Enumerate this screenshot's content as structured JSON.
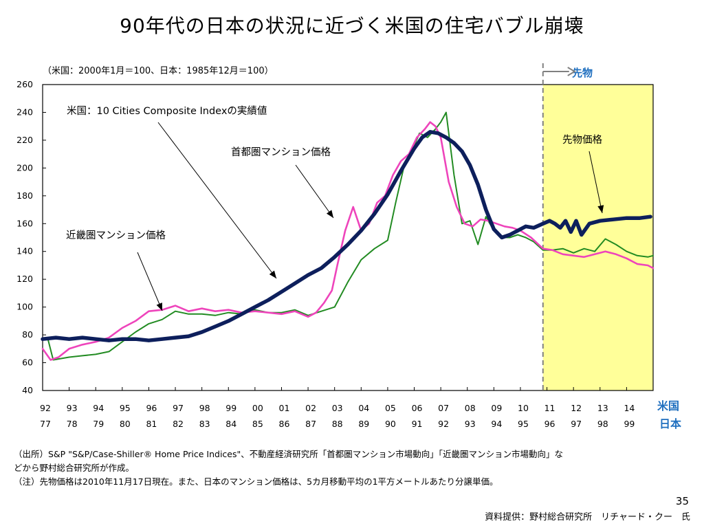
{
  "title": "90年代の日本の状況に近づく米国の住宅バブル崩壊",
  "index_note": "（米国：2000年1月＝100、日本：1985年12月＝100）",
  "futures_label": "先物",
  "footnotes": {
    "line1": "（出所）S&P \"S&P/Case-Shiller® Home Price Indices\"、不動産経済研究所「首都圏マンション市場動向」「近畿圏マンション市場動向」な",
    "line2": "どから野村総合研究所が作成。",
    "line3": "（注）先物価格は2010年11月17日現在。また、日本のマンション価格は、5カ月移動平均の1平方メートルあたり分譲単価。"
  },
  "page_number": "35",
  "credit": "資料提供：野村総合研究所　リチャード・クー　氏",
  "chart_data": {
    "type": "line",
    "ylim": [
      40,
      260
    ],
    "yticks": [
      40,
      60,
      80,
      100,
      120,
      140,
      160,
      180,
      200,
      220,
      240,
      260
    ],
    "x_range": [
      1992,
      2015
    ],
    "xticks_us": [
      "92",
      "93",
      "94",
      "95",
      "96",
      "97",
      "98",
      "99",
      "00",
      "01",
      "02",
      "03",
      "04",
      "05",
      "06",
      "07",
      "08",
      "09",
      "10",
      "11",
      "12",
      "13",
      "14"
    ],
    "xticks_jp": [
      "77",
      "78",
      "79",
      "80",
      "81",
      "82",
      "83",
      "84",
      "85",
      "86",
      "87",
      "88",
      "89",
      "90",
      "91",
      "92",
      "93",
      "94",
      "95",
      "96",
      "97",
      "98",
      "99"
    ],
    "axis_label_us": "米国",
    "axis_label_jp": "日本",
    "futures_start": 2010.85,
    "grid": false,
    "colors": {
      "us": "#0d1f5c",
      "tokyo": "#ee44bb",
      "kinki": "#228b22",
      "futures_bg": "#ffff99",
      "accent": "#1f6fbf"
    },
    "annotations": {
      "us": "米国：10 Cities Composite Indexの実績値",
      "tokyo": "首都圏マンション価格",
      "kinki": "近畿圏マンション価格",
      "futures": "先物価格"
    },
    "series": [
      {
        "key": "us",
        "name": "米国：10 Cities Composite Indexの実績値",
        "x": [
          1992.0,
          1992.5,
          1993.0,
          1993.5,
          1994.0,
          1994.5,
          1995.0,
          1995.5,
          1996.0,
          1996.5,
          1997.0,
          1997.5,
          1998.0,
          1998.5,
          1999.0,
          1999.5,
          2000.0,
          2000.5,
          2001.0,
          2001.5,
          2002.0,
          2002.5,
          2003.0,
          2003.5,
          2004.0,
          2004.5,
          2005.0,
          2005.5,
          2006.0,
          2006.3,
          2006.6,
          2006.9,
          2007.2,
          2007.5,
          2007.8,
          2008.1,
          2008.4,
          2008.7,
          2009.0,
          2009.3,
          2009.6,
          2009.9,
          2010.2,
          2010.5,
          2010.85
        ],
        "y": [
          77,
          78,
          77,
          78,
          77,
          76,
          77,
          77,
          76,
          77,
          78,
          79,
          82,
          86,
          90,
          95,
          100,
          105,
          111,
          117,
          123,
          128,
          136,
          145,
          155,
          167,
          181,
          198,
          214,
          222,
          226,
          225,
          222,
          218,
          212,
          202,
          188,
          170,
          156,
          150,
          152,
          155,
          158,
          157,
          160
        ]
      },
      {
        "key": "us_futures",
        "name": "先物価格",
        "x": [
          2010.85,
          2011.1,
          2011.3,
          2011.5,
          2011.7,
          2011.9,
          2012.1,
          2012.3,
          2012.6,
          2013.0,
          2013.5,
          2014.0,
          2014.5,
          2014.9
        ],
        "y": [
          160,
          162,
          160,
          157,
          162,
          154,
          162,
          152,
          160,
          162,
          163,
          164,
          164,
          165
        ]
      },
      {
        "key": "tokyo",
        "name": "首都圏マンション価格",
        "x": [
          1992.0,
          1992.3,
          1992.6,
          1993.0,
          1993.5,
          1994.0,
          1994.5,
          1995.0,
          1995.5,
          1996.0,
          1996.5,
          1997.0,
          1997.5,
          1998.0,
          1998.5,
          1999.0,
          1999.5,
          2000.0,
          2000.5,
          2001.0,
          2001.5,
          2002.0,
          2002.3,
          2002.6,
          2002.9,
          2003.1,
          2003.4,
          2003.7,
          2004.0,
          2004.3,
          2004.6,
          2004.9,
          2005.2,
          2005.5,
          2005.8,
          2006.1,
          2006.4,
          2006.6,
          2006.8,
          2007.0,
          2007.3,
          2007.6,
          2007.9,
          2008.2,
          2008.5,
          2008.8,
          2009.1,
          2009.4,
          2009.7,
          2010.0,
          2010.4,
          2010.85,
          2011.2,
          2011.6,
          2012.0,
          2012.4,
          2012.8,
          2013.2,
          2013.6,
          2014.0,
          2014.4,
          2014.8,
          2015.0
        ],
        "y": [
          70,
          62,
          64,
          70,
          73,
          75,
          78,
          85,
          90,
          97,
          98,
          101,
          97,
          99,
          97,
          98,
          96,
          97,
          96,
          95,
          97,
          93,
          96,
          103,
          112,
          130,
          155,
          172,
          155,
          160,
          175,
          180,
          195,
          205,
          210,
          222,
          228,
          233,
          230,
          222,
          190,
          172,
          160,
          158,
          163,
          162,
          160,
          158,
          157,
          155,
          150,
          142,
          141,
          138,
          137,
          136,
          138,
          140,
          138,
          135,
          131,
          130,
          128
        ]
      },
      {
        "key": "kinki",
        "name": "近畿圏マンション価格",
        "x": [
          1992.0,
          1992.2,
          1992.4,
          1992.7,
          1993.0,
          1993.5,
          1994.0,
          1994.5,
          1995.0,
          1995.5,
          1996.0,
          1996.5,
          1997.0,
          1997.5,
          1998.0,
          1998.5,
          1999.0,
          1999.5,
          2000.0,
          2000.5,
          2001.0,
          2001.5,
          2002.0,
          2002.5,
          2003.0,
          2003.5,
          2004.0,
          2004.5,
          2005.0,
          2005.3,
          2005.6,
          2005.9,
          2006.2,
          2006.5,
          2006.8,
          2007.0,
          2007.2,
          2007.5,
          2007.8,
          2008.1,
          2008.4,
          2008.7,
          2009.0,
          2009.3,
          2009.6,
          2009.9,
          2010.2,
          2010.5,
          2010.85,
          2011.2,
          2011.6,
          2012.0,
          2012.4,
          2012.8,
          2013.2,
          2013.6,
          2014.0,
          2014.4,
          2014.8,
          2015.0
        ],
        "y": [
          77,
          77,
          62,
          63,
          64,
          65,
          66,
          68,
          75,
          82,
          88,
          91,
          97,
          95,
          95,
          94,
          96,
          95,
          98,
          96,
          96,
          98,
          94,
          97,
          100,
          118,
          134,
          142,
          148,
          175,
          200,
          212,
          225,
          222,
          228,
          233,
          240,
          195,
          160,
          162,
          145,
          165,
          155,
          150,
          150,
          152,
          150,
          147,
          141,
          141,
          142,
          139,
          142,
          140,
          149,
          145,
          140,
          137,
          136,
          137
        ]
      }
    ]
  }
}
